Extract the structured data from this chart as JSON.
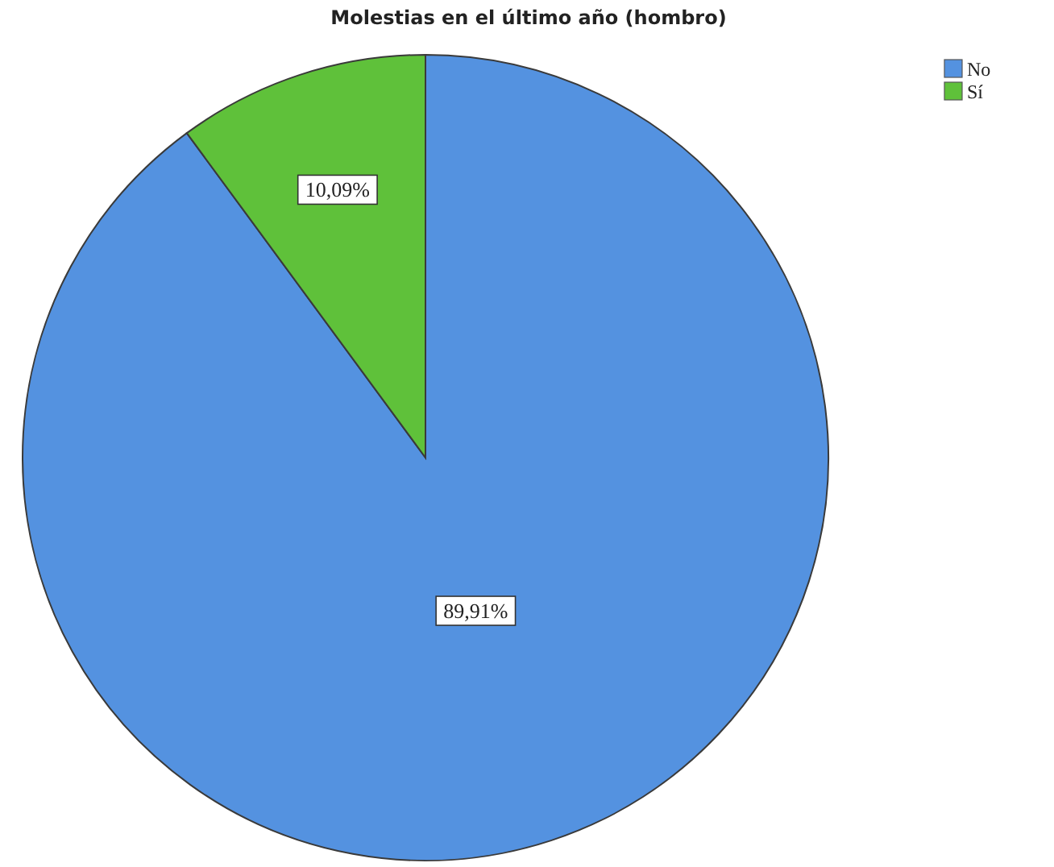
{
  "chart_data": {
    "type": "pie",
    "title": "Molestias en el último año (hombro)",
    "categories": [
      "No",
      "Sí"
    ],
    "values": [
      89.91,
      10.09
    ],
    "colors": [
      "#5492e0",
      "#5fc13a"
    ],
    "value_labels": [
      "89,91%",
      "10,09%"
    ],
    "legend": "top right"
  }
}
